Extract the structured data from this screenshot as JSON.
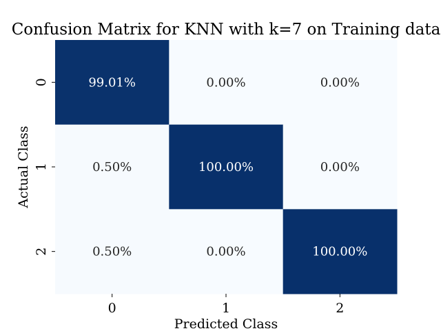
{
  "chart_data": {
    "type": "heatmap",
    "title": "Confusion Matrix for KNN with k=7 on Training data",
    "xlabel": "Predicted Class",
    "ylabel": "Actual Class",
    "x_categories": [
      "0",
      "1",
      "2"
    ],
    "y_categories": [
      "0",
      "1",
      "2"
    ],
    "values": [
      [
        99.01,
        0.0,
        0.0
      ],
      [
        0.5,
        100.0,
        0.0
      ],
      [
        0.5,
        0.0,
        100.0
      ]
    ],
    "cell_labels": [
      [
        "99.01%",
        "0.00%",
        "0.00%"
      ],
      [
        "0.50%",
        "100.00%",
        "0.00%"
      ],
      [
        "0.50%",
        "0.00%",
        "100.00%"
      ]
    ],
    "value_range": [
      0,
      100
    ],
    "colormap": "Blues",
    "colors": {
      "low": "#f7fbff",
      "high": "#08306b",
      "text_on_dark": "#ffffff",
      "text_on_light": "#262626"
    },
    "colorbar": false,
    "grid": false
  }
}
